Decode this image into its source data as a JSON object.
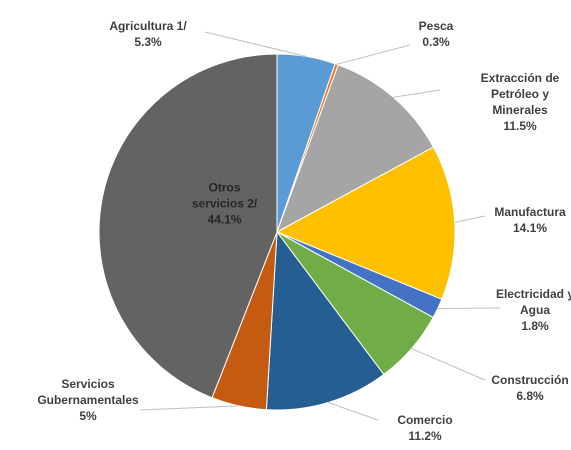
{
  "chart_data": {
    "type": "pie",
    "title": "",
    "legend": "none",
    "slices": [
      {
        "label_lines": [
          "Agricultura 1/"
        ],
        "value_label": "5.3%",
        "value": 5.3,
        "color": "#5b9bd5"
      },
      {
        "label_lines": [
          "Pesca"
        ],
        "value_label": "0.3%",
        "value": 0.3,
        "color": "#ed7d31"
      },
      {
        "label_lines": [
          "Extracción de",
          "Petróleo y",
          "Minerales"
        ],
        "value_label": "11.5%",
        "value": 11.5,
        "color": "#a5a5a5"
      },
      {
        "label_lines": [
          "Manufactura"
        ],
        "value_label": "14.1%",
        "value": 14.1,
        "color": "#ffc000"
      },
      {
        "label_lines": [
          "Electricidad y",
          "Agua"
        ],
        "value_label": "1.8%",
        "value": 1.8,
        "color": "#4472c4"
      },
      {
        "label_lines": [
          "Construcción"
        ],
        "value_label": "6.8%",
        "value": 6.8,
        "color": "#70ad47"
      },
      {
        "label_lines": [
          "Comercio"
        ],
        "value_label": "11.2%",
        "value": 11.2,
        "color": "#255e91"
      },
      {
        "label_lines": [
          "Servicios",
          "Gubernamentales"
        ],
        "value_label": "5%",
        "value": 5.0,
        "color": "#c55a11"
      },
      {
        "label_lines": [
          "Otros",
          "servicios 2/"
        ],
        "value_label": "44.1%",
        "value": 44.1,
        "color": "#636363"
      }
    ]
  }
}
